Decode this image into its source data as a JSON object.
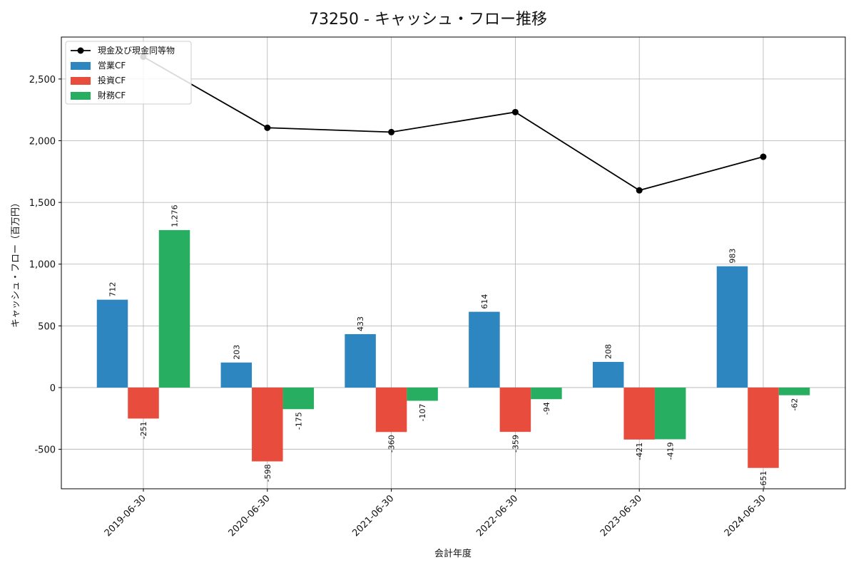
{
  "chart_data": {
    "type": "bar",
    "title": "73250 - キャッシュ・フロー推移",
    "xlabel": "会計年度",
    "ylabel": "キャッシュ・フロー（百万円）",
    "categories": [
      "2019-06-30",
      "2020-06-30",
      "2021-06-30",
      "2022-06-30",
      "2023-06-30",
      "2024-06-30"
    ],
    "series": [
      {
        "name": "営業CF",
        "values": [
          712,
          203,
          433,
          614,
          208,
          983
        ],
        "labels": [
          "712",
          "203",
          "433",
          "614",
          "208",
          "983"
        ],
        "color": "#2e86c1"
      },
      {
        "name": "投資CF",
        "values": [
          -251,
          -598,
          -360,
          -359,
          -421,
          -651
        ],
        "labels": [
          "-251",
          "-598",
          "-360",
          "-359",
          "-421",
          "-651"
        ],
        "color": "#e74c3c"
      },
      {
        "name": "財務CF",
        "values": [
          1276,
          -175,
          -107,
          -94,
          -419,
          -62
        ],
        "labels": [
          "1,276",
          "-175",
          "-107",
          "-94",
          "-419",
          "-62"
        ],
        "color": "#27ae60"
      }
    ],
    "line": {
      "name": "現金及び現金同等物",
      "values": [
        2680,
        2105,
        2070,
        2232,
        1598,
        1870
      ],
      "color": "#000000"
    },
    "ylim": [
      -820,
      2840
    ],
    "yticks": [
      -500,
      0,
      500,
      1000,
      1500,
      2000,
      2500
    ],
    "ytick_labels": [
      "-500",
      "0",
      "500",
      "1,000",
      "1,500",
      "2,000",
      "2,500"
    ],
    "grid": true,
    "legend": "top-left"
  }
}
